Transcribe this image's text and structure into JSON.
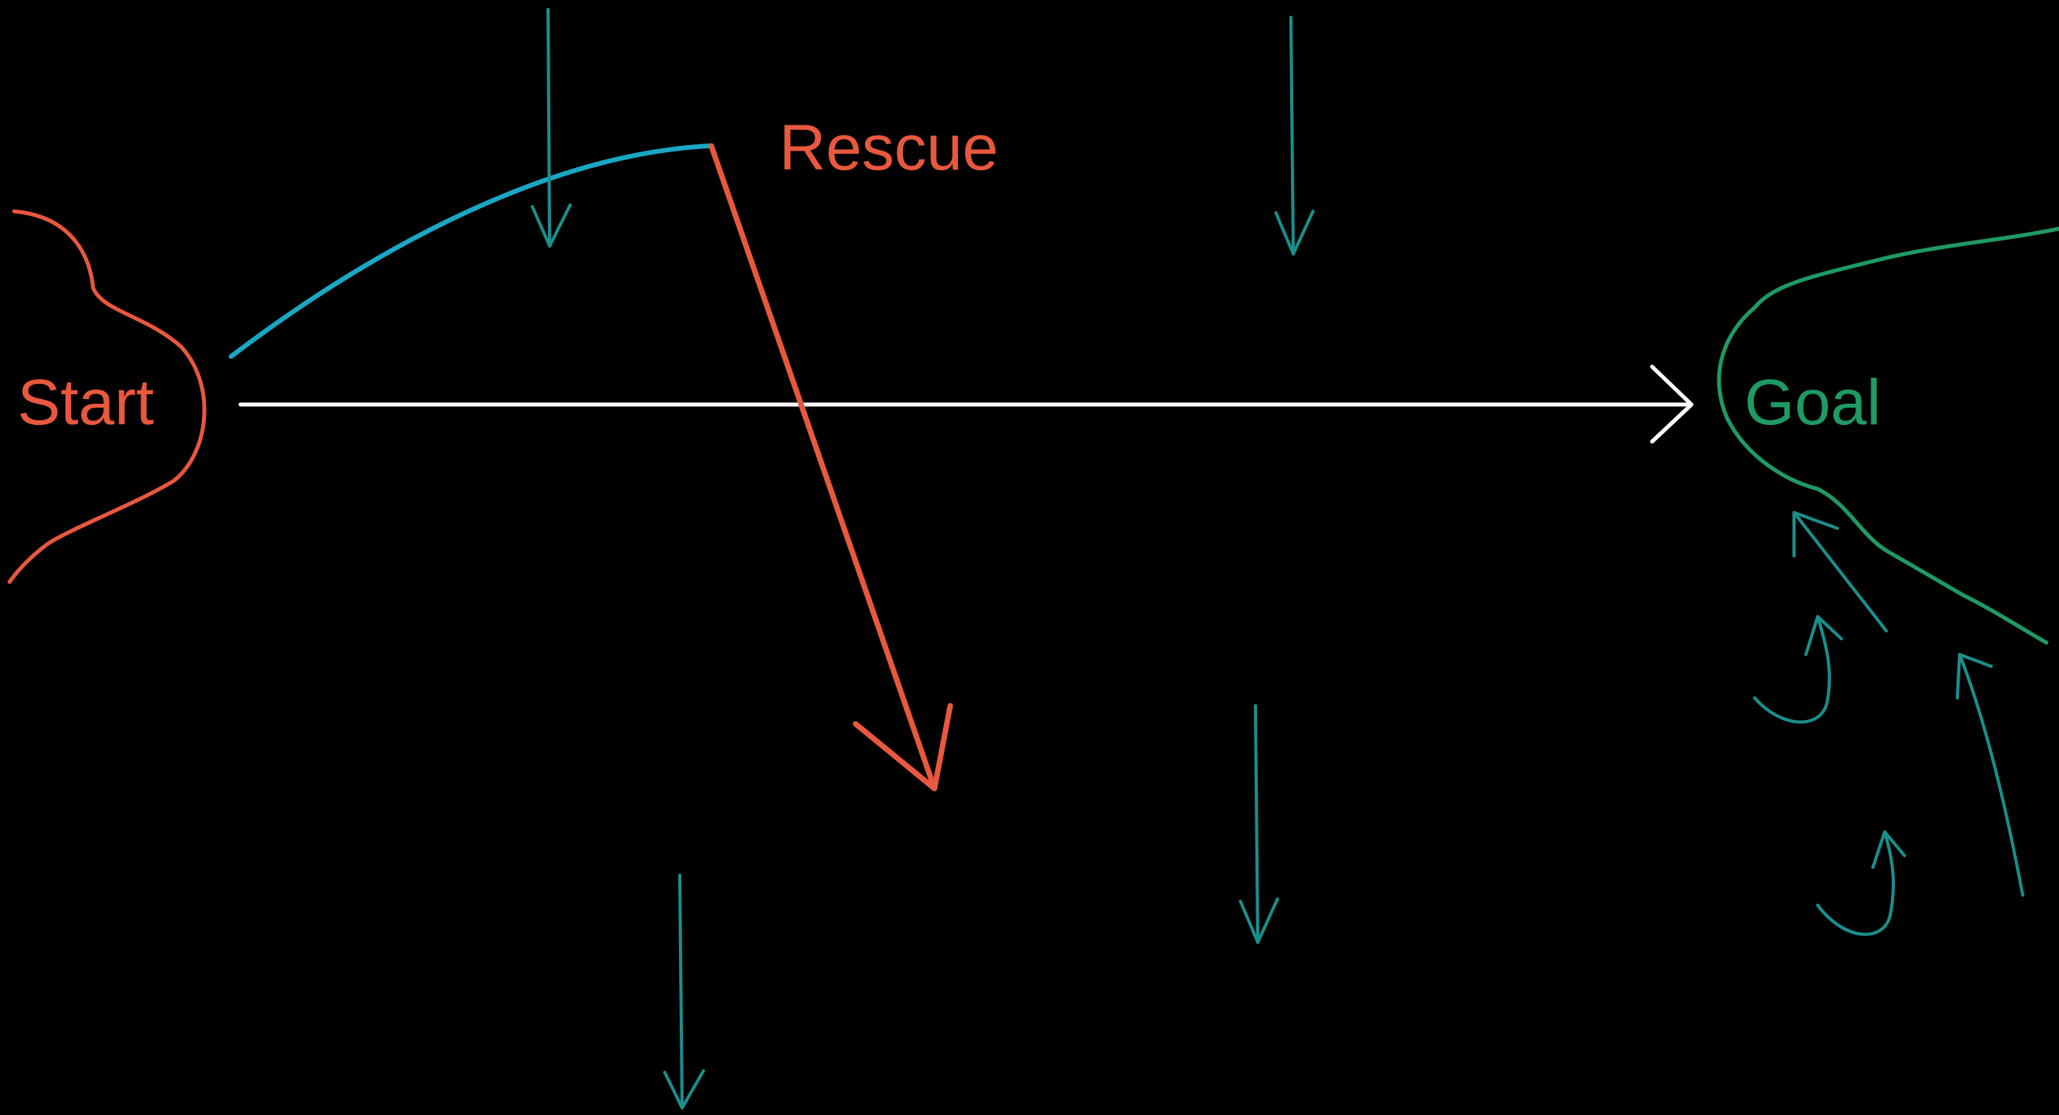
{
  "labels": {
    "start": "Start",
    "rescue": "Rescue",
    "goal": "Goal"
  },
  "colors": {
    "background": "#000000",
    "start": "#e8583e",
    "rescue": "#e8583e",
    "goal": "#1f9a64",
    "trajectory": "#1aa7c4",
    "main_arrow": "#ffffff",
    "flow_arrows": "#1a8f8c"
  }
}
